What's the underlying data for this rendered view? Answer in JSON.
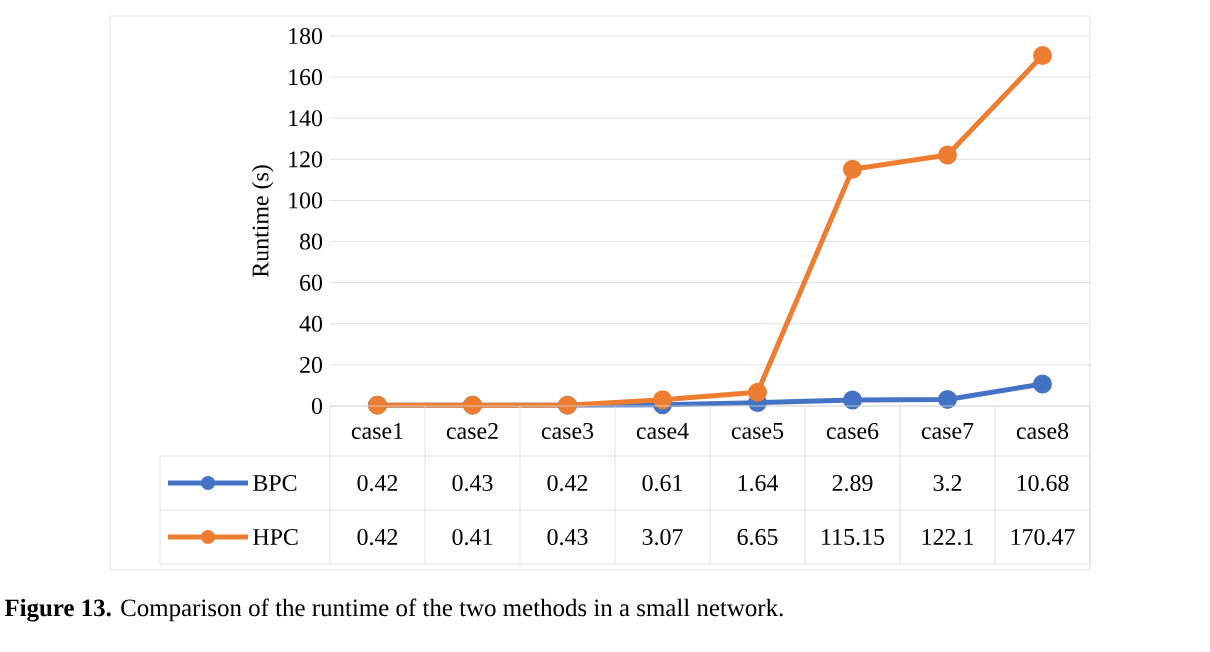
{
  "chart_data": {
    "type": "line",
    "ylabel": "Runtime (s)",
    "categories": [
      "case1",
      "case2",
      "case3",
      "case4",
      "case5",
      "case6",
      "case7",
      "case8"
    ],
    "series": [
      {
        "name": "BPC",
        "color": "#4472c4",
        "values": [
          0.42,
          0.43,
          0.42,
          0.61,
          1.64,
          2.89,
          3.2,
          10.68
        ]
      },
      {
        "name": "HPC",
        "color": "#ed7d31",
        "values": [
          0.42,
          0.41,
          0.43,
          3.07,
          6.65,
          115.15,
          122.1,
          170.47
        ]
      }
    ],
    "ylim": [
      0,
      180
    ],
    "yticks": [
      0,
      20,
      40,
      60,
      80,
      100,
      120,
      140,
      160,
      180
    ],
    "grid": "y",
    "legend": "bottom left",
    "marker": "circle",
    "line_style": "solid",
    "data_labels": true,
    "annotations": [
      "**Figure 13.** Comparison of the runtime of the two methods in a small network."
    ]
  }
}
